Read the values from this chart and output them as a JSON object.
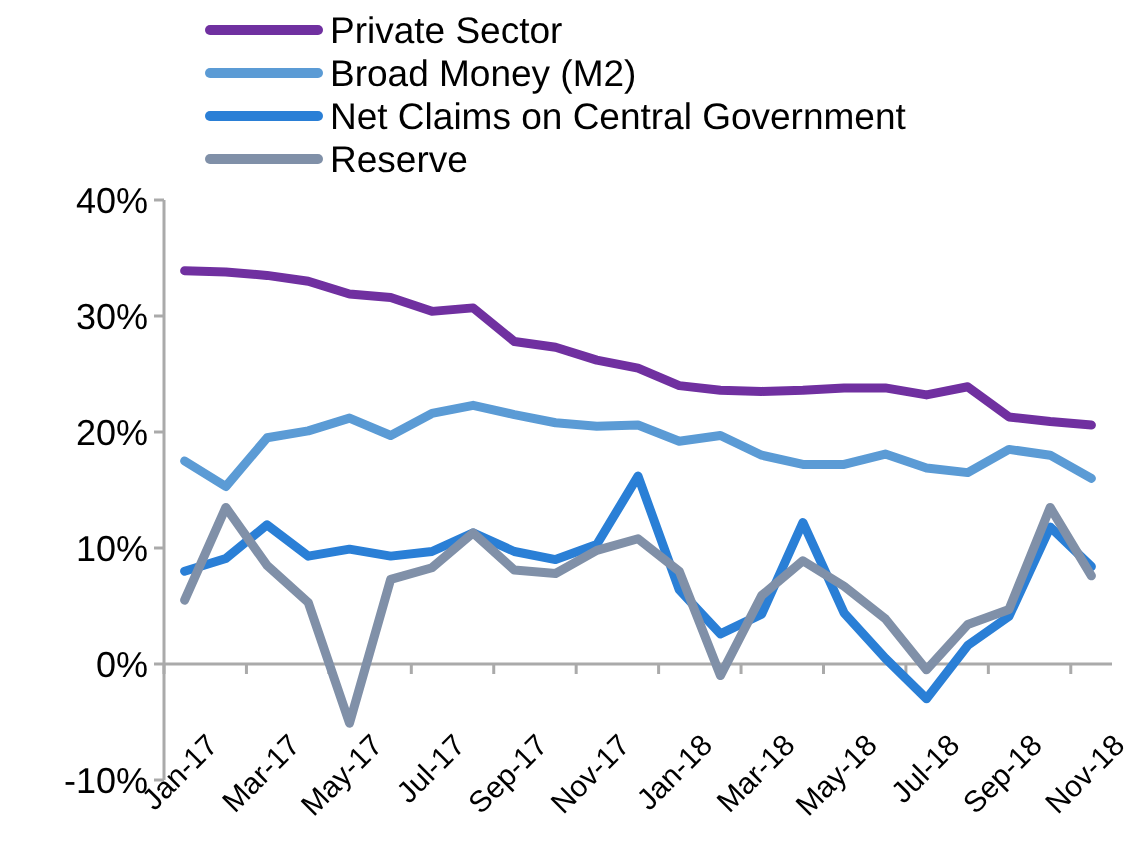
{
  "chart_data": {
    "type": "line",
    "categories": [
      "Jan-17",
      null,
      "Mar-17",
      null,
      "May-17",
      null,
      "Jul-17",
      null,
      "Sep-17",
      null,
      "Nov-17",
      null,
      "Jan-18",
      null,
      "Mar-18",
      null,
      "May-18",
      null,
      "Jul-18",
      null,
      "Sep-18",
      null,
      "Nov-18"
    ],
    "series": [
      {
        "name": "Private Sector",
        "color": "#7030a0",
        "values": [
          33.9,
          33.8,
          33.5,
          33.0,
          31.9,
          31.6,
          30.4,
          30.7,
          27.8,
          27.3,
          26.2,
          25.5,
          24.0,
          23.6,
          23.5,
          23.6,
          23.8,
          23.8,
          23.2,
          23.9,
          21.3,
          20.9,
          20.6
        ]
      },
      {
        "name": "Broad Money (M2)",
        "color": "#5b9bd5",
        "values": [
          17.5,
          15.3,
          19.5,
          20.1,
          21.2,
          19.7,
          21.6,
          22.3,
          21.5,
          20.8,
          20.5,
          20.6,
          19.2,
          19.7,
          18.0,
          17.2,
          17.2,
          18.1,
          16.9,
          16.5,
          18.5,
          18.0,
          16.0
        ]
      },
      {
        "name": "Net Claims on Central Government",
        "color": "#2a7fd6",
        "values": [
          8.0,
          9.1,
          12.0,
          9.3,
          9.9,
          9.3,
          9.7,
          11.3,
          9.7,
          9.0,
          10.3,
          16.2,
          6.4,
          2.6,
          4.3,
          12.2,
          4.4,
          0.5,
          -3.0,
          1.6,
          4.1,
          11.8,
          8.4
        ]
      },
      {
        "name": "Reserve",
        "color": "#8090a8",
        "values": [
          5.5,
          13.5,
          8.5,
          5.3,
          -5.1,
          7.3,
          8.3,
          11.3,
          8.1,
          7.8,
          9.8,
          10.8,
          8.0,
          -1.0,
          5.9,
          8.9,
          6.7,
          3.9,
          -0.5,
          3.4,
          4.7,
          13.5,
          7.6
        ]
      }
    ],
    "ylim": [
      -10,
      40
    ],
    "yticks": [
      {
        "value": -10,
        "label": "-10%"
      },
      {
        "value": 0,
        "label": "0%"
      },
      {
        "value": 10,
        "label": "10%"
      },
      {
        "value": 20,
        "label": "20%"
      },
      {
        "value": 30,
        "label": "30%"
      },
      {
        "value": 40,
        "label": "40%"
      }
    ],
    "grid": false,
    "legend": "top",
    "line_style": "solid",
    "marker": "none"
  }
}
